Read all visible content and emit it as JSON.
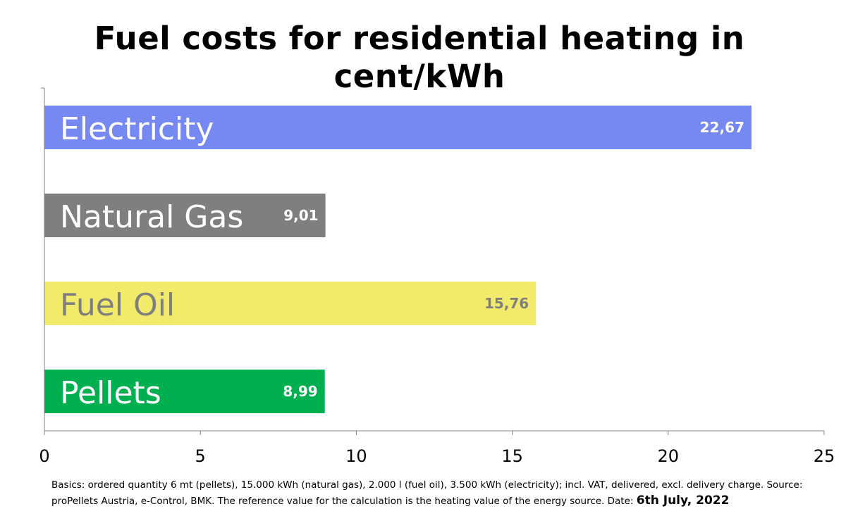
{
  "chart_data": {
    "type": "bar",
    "orientation": "horizontal",
    "title": "Fuel costs for residential heating in cent/kWh",
    "title_lines": [
      "Fuel costs for residential heating in",
      "cent/kWh"
    ],
    "categories": [
      "Electricity",
      "Natural Gas",
      "Fuel Oil",
      "Pellets"
    ],
    "values": [
      22.67,
      9.01,
      15.76,
      8.99
    ],
    "value_labels": [
      "22,67",
      "9,01",
      "15,76",
      "8,99"
    ],
    "bar_colors": [
      "#7689F2",
      "#7F7F7F",
      "#F2EA6B",
      "#00B050"
    ],
    "label_colors": [
      "#FFFFFF",
      "#FFFFFF",
      "#7F7F7F",
      "#FFFFFF"
    ],
    "xlim": [
      0,
      25
    ],
    "xticks": [
      0,
      5,
      10,
      15,
      20,
      25
    ],
    "xtick_labels": [
      "0",
      "5",
      "10",
      "15",
      "20",
      "25"
    ],
    "grid": false,
    "legend": "none"
  },
  "footnote": {
    "text": "Basics: ordered quantity 6 mt (pellets), 15.000 kWh (natural gas), 2.000 l (fuel oil), 3.500 kWh (electricity); incl. VAT, delivered, excl. delivery charge. Source: proPellets Austria, e-Control, BMK. The reference value for the calculation is the heating value of the energy source. Date:",
    "date": "6th July, 2022"
  }
}
